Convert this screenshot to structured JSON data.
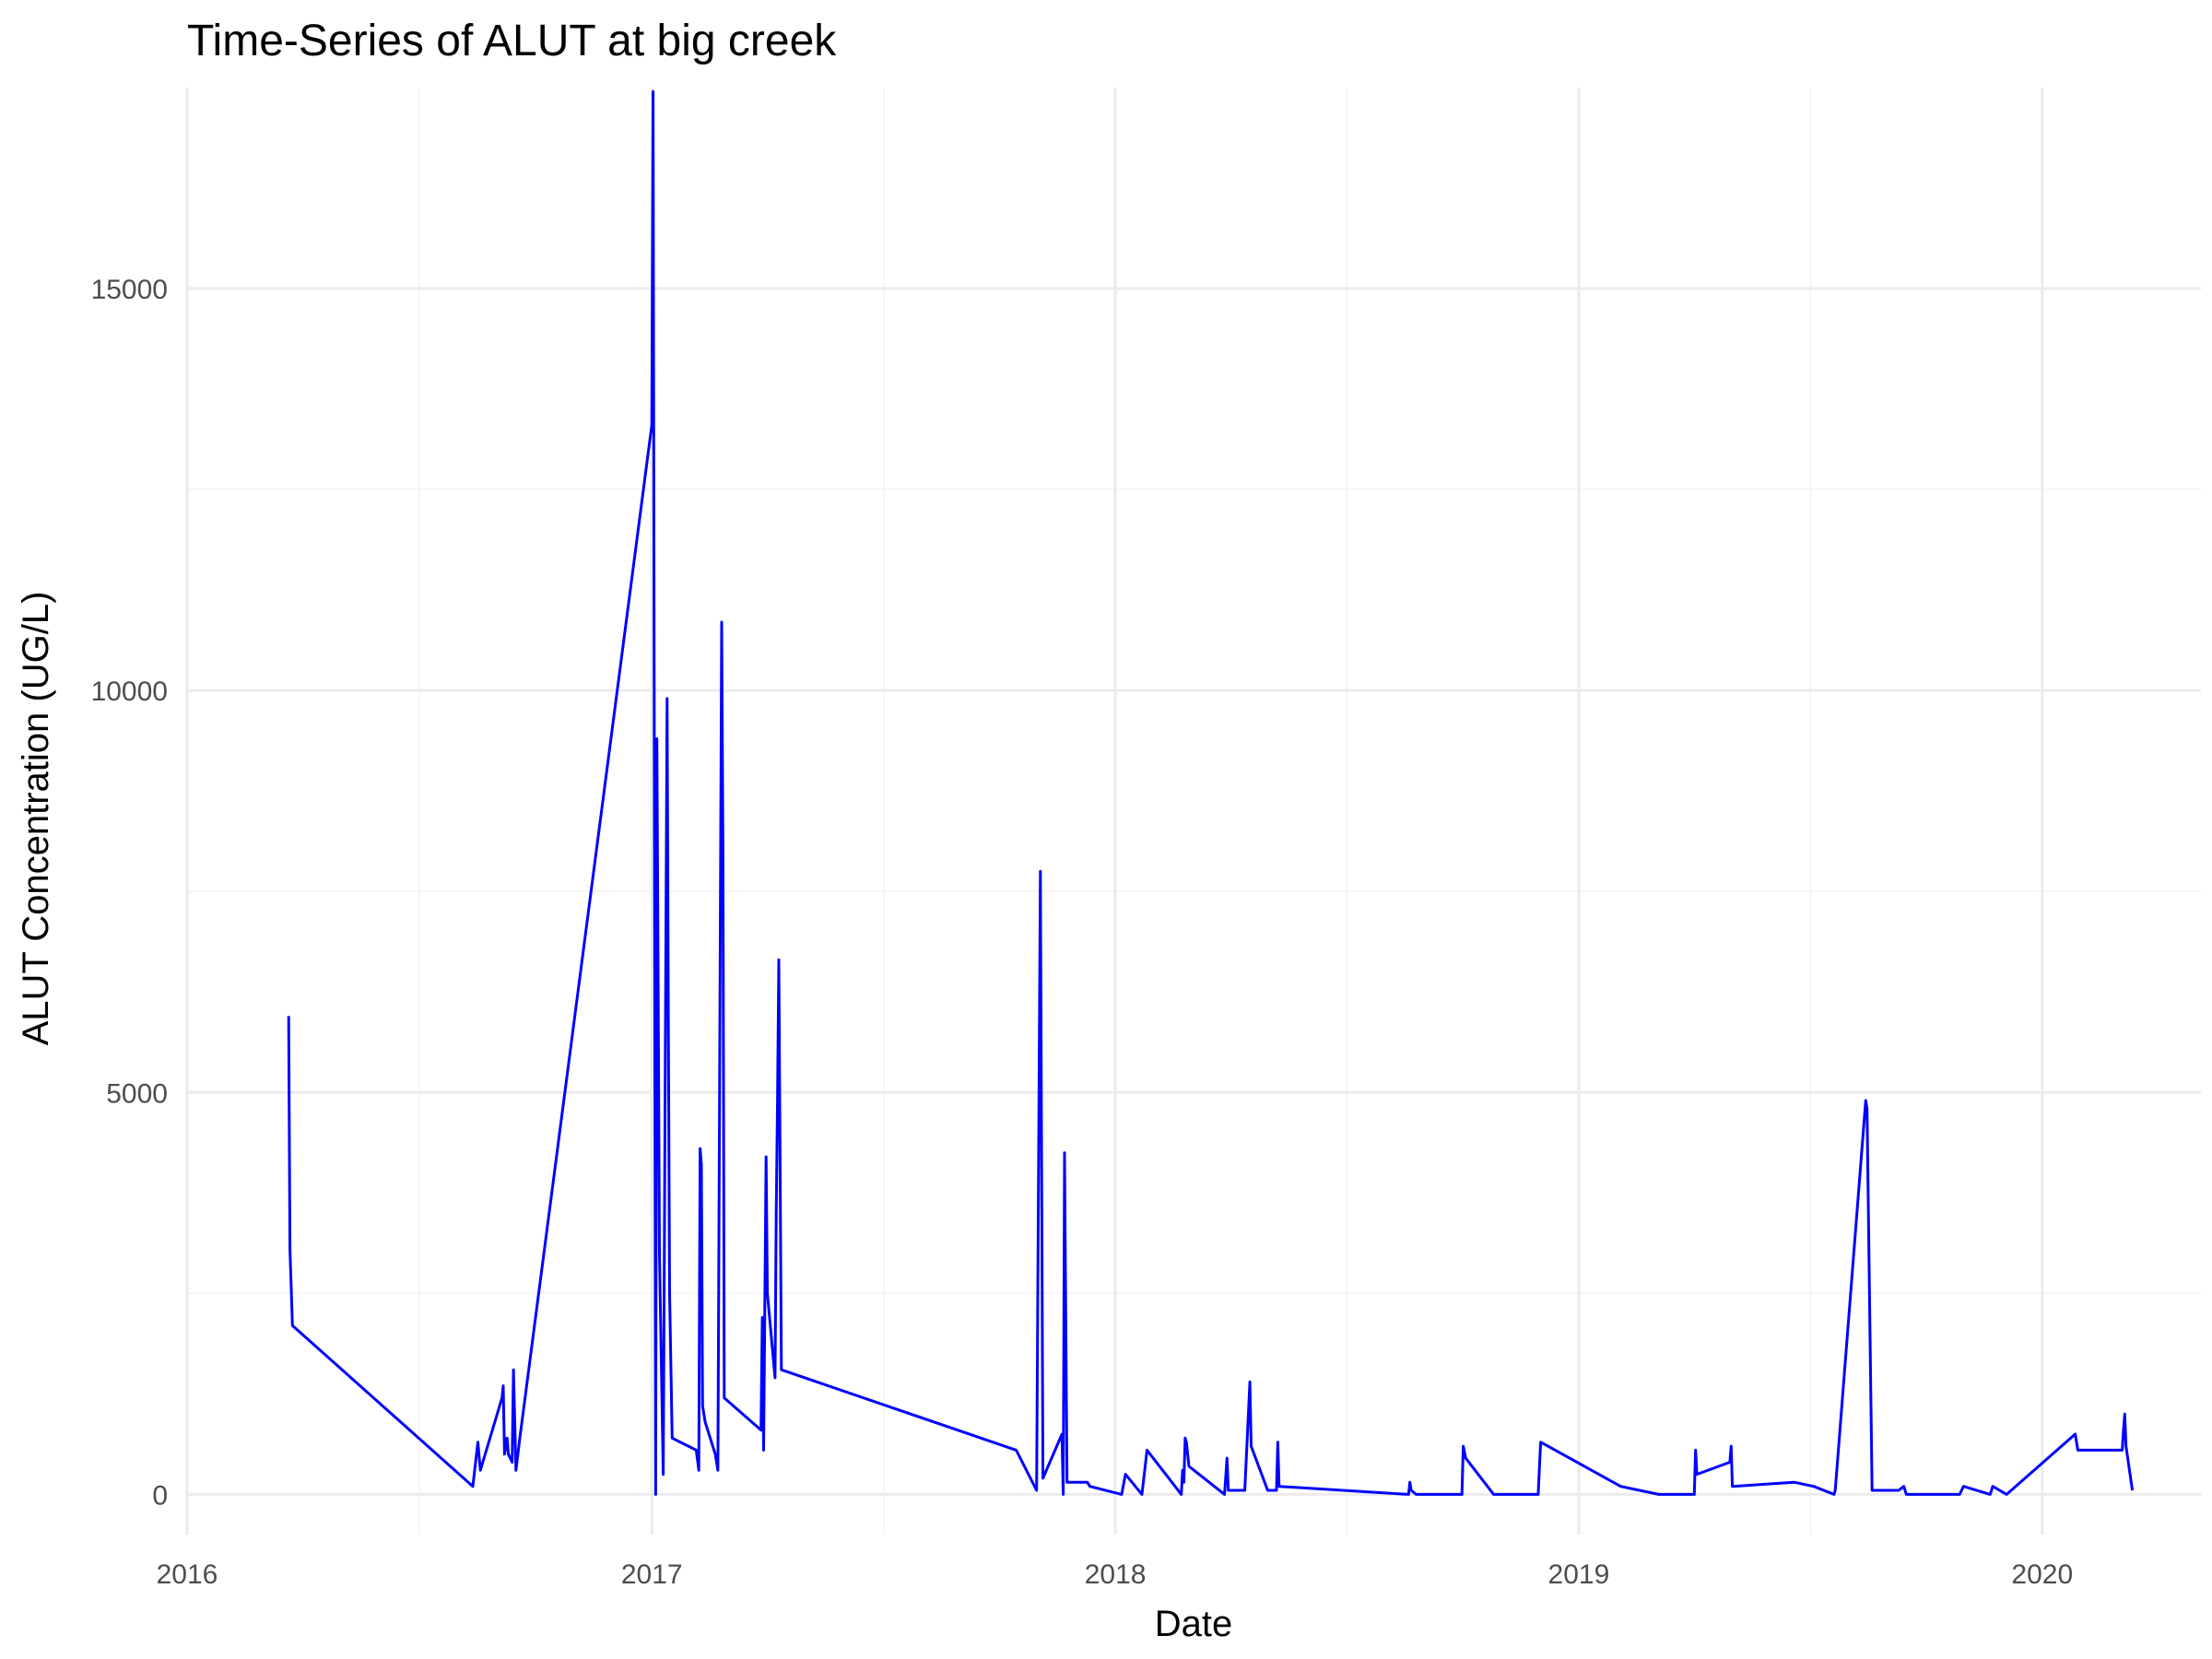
{
  "chart_data": {
    "type": "line",
    "title": "Time-Series of ALUT at big creek",
    "xlabel": "Date",
    "ylabel": "ALUT Concentration (UG/L)",
    "xlim": [
      "2016-01-01",
      "2020-05-05"
    ],
    "ylim": [
      -500,
      17500
    ],
    "x_ticks": [
      {
        "value": "2016-01-01",
        "label": "2016"
      },
      {
        "value": "2017-01-01",
        "label": "2017"
      },
      {
        "value": "2018-01-01",
        "label": "2018"
      },
      {
        "value": "2019-01-01",
        "label": "2019"
      },
      {
        "value": "2020-01-01",
        "label": "2020"
      }
    ],
    "y_ticks": [
      {
        "value": 0,
        "label": "0"
      },
      {
        "value": 5000,
        "label": "5000"
      },
      {
        "value": 10000,
        "label": "10000"
      },
      {
        "value": 15000,
        "label": "15000"
      }
    ],
    "grid": true,
    "legend": "none",
    "series": [
      {
        "color": "#0000ff",
        "points": [
          [
            "2016-03-21",
            5950
          ],
          [
            "2016-03-22",
            3050
          ],
          [
            "2016-03-24",
            2100
          ],
          [
            "2016-08-13",
            100
          ],
          [
            "2016-08-17",
            650
          ],
          [
            "2016-08-19",
            300
          ],
          [
            "2016-09-05",
            1200
          ],
          [
            "2016-09-06",
            1350
          ],
          [
            "2016-09-07",
            500
          ],
          [
            "2016-09-09",
            700
          ],
          [
            "2016-09-10",
            500
          ],
          [
            "2016-09-13",
            400
          ],
          [
            "2016-09-14",
            1550
          ],
          [
            "2016-09-16",
            300
          ],
          [
            "2016-09-19",
            700
          ],
          [
            "2017-01-01",
            13300
          ],
          [
            "2017-01-02",
            17450
          ],
          [
            "2017-01-04",
            0
          ],
          [
            "2017-01-05",
            9400
          ],
          [
            "2017-01-06",
            6300
          ],
          [
            "2017-01-07",
            3000
          ],
          [
            "2017-01-10",
            250
          ],
          [
            "2017-01-13",
            9900
          ],
          [
            "2017-01-14",
            6000
          ],
          [
            "2017-01-15",
            2500
          ],
          [
            "2017-01-17",
            700
          ],
          [
            "2017-02-05",
            550
          ],
          [
            "2017-02-07",
            300
          ],
          [
            "2017-02-08",
            4300
          ],
          [
            "2017-02-09",
            4100
          ],
          [
            "2017-02-10",
            1100
          ],
          [
            "2017-02-12",
            900
          ],
          [
            "2017-02-20",
            500
          ],
          [
            "2017-02-22",
            300
          ],
          [
            "2017-02-25",
            10850
          ],
          [
            "2017-02-26",
            8000
          ],
          [
            "2017-02-27",
            1200
          ],
          [
            "2017-03-28",
            800
          ],
          [
            "2017-03-29",
            2200
          ],
          [
            "2017-03-30",
            550
          ],
          [
            "2017-04-01",
            4200
          ],
          [
            "2017-04-02",
            2500
          ],
          [
            "2017-04-08",
            1450
          ],
          [
            "2017-04-09",
            3500
          ],
          [
            "2017-04-10",
            4900
          ],
          [
            "2017-04-11",
            6650
          ],
          [
            "2017-04-13",
            1550
          ],
          [
            "2017-10-15",
            550
          ],
          [
            "2017-10-31",
            50
          ],
          [
            "2017-11-03",
            7750
          ],
          [
            "2017-11-05",
            200
          ],
          [
            "2017-11-20",
            750
          ],
          [
            "2017-11-21",
            0
          ],
          [
            "2017-11-22",
            4250
          ],
          [
            "2017-11-24",
            150
          ],
          [
            "2017-12-10",
            150
          ],
          [
            "2017-12-12",
            100
          ],
          [
            "2018-01-06",
            0
          ],
          [
            "2018-01-09",
            250
          ],
          [
            "2018-01-22",
            0
          ],
          [
            "2018-01-26",
            550
          ],
          [
            "2018-02-22",
            0
          ],
          [
            "2018-02-23",
            300
          ],
          [
            "2018-02-24",
            150
          ],
          [
            "2018-02-25",
            700
          ],
          [
            "2018-02-26",
            650
          ],
          [
            "2018-02-28",
            350
          ],
          [
            "2018-03-28",
            0
          ],
          [
            "2018-03-30",
            450
          ],
          [
            "2018-03-31",
            50
          ],
          [
            "2018-04-13",
            50
          ],
          [
            "2018-04-17",
            1400
          ],
          [
            "2018-04-18",
            600
          ],
          [
            "2018-05-01",
            50
          ],
          [
            "2018-05-08",
            50
          ],
          [
            "2018-05-09",
            650
          ],
          [
            "2018-05-10",
            100
          ],
          [
            "2018-08-20",
            0
          ],
          [
            "2018-08-21",
            150
          ],
          [
            "2018-08-22",
            50
          ],
          [
            "2018-08-26",
            0
          ],
          [
            "2018-10-01",
            0
          ],
          [
            "2018-10-02",
            600
          ],
          [
            "2018-10-04",
            450
          ],
          [
            "2018-10-26",
            0
          ],
          [
            "2018-11-30",
            0
          ],
          [
            "2018-12-02",
            650
          ],
          [
            "2019-02-03",
            100
          ],
          [
            "2019-03-05",
            0
          ],
          [
            "2019-04-02",
            0
          ],
          [
            "2019-04-03",
            550
          ],
          [
            "2019-04-04",
            250
          ],
          [
            "2019-04-30",
            400
          ],
          [
            "2019-05-01",
            600
          ],
          [
            "2019-05-02",
            100
          ],
          [
            "2019-06-20",
            150
          ],
          [
            "2019-07-05",
            100
          ],
          [
            "2019-07-21",
            0
          ],
          [
            "2019-07-22",
            50
          ],
          [
            "2019-08-15",
            4900
          ],
          [
            "2019-08-16",
            4800
          ],
          [
            "2019-08-20",
            50
          ],
          [
            "2019-09-10",
            50
          ],
          [
            "2019-09-14",
            100
          ],
          [
            "2019-09-16",
            0
          ],
          [
            "2019-10-28",
            0
          ],
          [
            "2019-10-31",
            100
          ],
          [
            "2019-11-21",
            0
          ],
          [
            "2019-11-23",
            100
          ],
          [
            "2019-12-04",
            0
          ],
          [
            "2020-01-27",
            750
          ],
          [
            "2020-01-29",
            550
          ],
          [
            "2020-03-04",
            550
          ],
          [
            "2020-03-05",
            800
          ],
          [
            "2020-03-06",
            1000
          ],
          [
            "2020-03-07",
            600
          ],
          [
            "2020-03-12",
            50
          ]
        ]
      }
    ]
  }
}
